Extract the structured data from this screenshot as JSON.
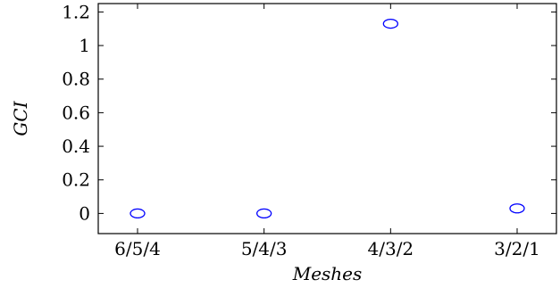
{
  "chart_data": {
    "type": "scatter",
    "categories": [
      "6/5/4",
      "5/4/3",
      "4/3/2",
      "3/2/1"
    ],
    "series": [
      {
        "values": [
          0.0,
          0.0,
          1.13,
          0.03
        ]
      }
    ],
    "xlabel": "Meshes",
    "ylabel": "GCI",
    "ylim": [
      -0.12,
      1.25
    ],
    "yticks": [
      0,
      0.2,
      0.4,
      0.6,
      0.8,
      1,
      1.2
    ],
    "ytick_labels": [
      "0",
      "0.2",
      "0.4",
      "0.6",
      "0.8",
      "1",
      "1.2"
    ],
    "grid": false,
    "marker": "open-circle",
    "colors": {
      "marker": "#0000ff",
      "axis": "#000000"
    }
  }
}
